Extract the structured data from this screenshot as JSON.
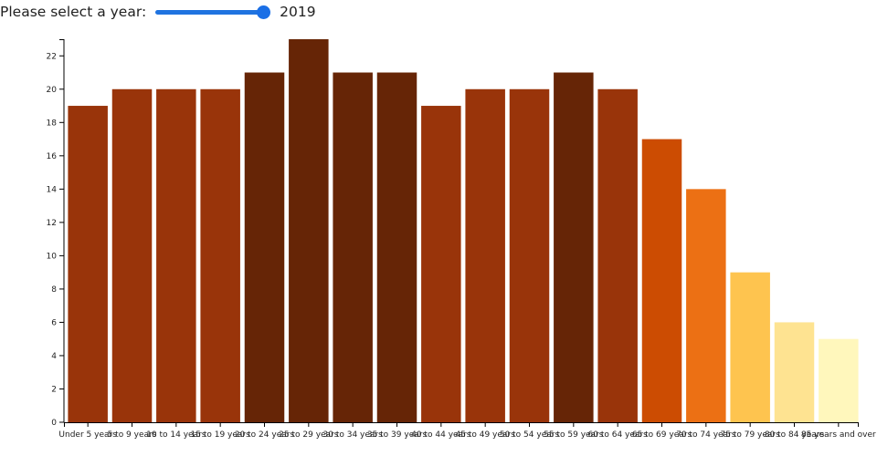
{
  "controls": {
    "label": "Please select a year:",
    "year": "2019",
    "slider_level": 1.0
  },
  "chart_data": {
    "type": "bar",
    "categories": [
      "Under 5 years",
      "5 to 9 years",
      "10 to 14 years",
      "15 to 19 years",
      "20 to 24 years",
      "25 to 29 years",
      "30 to 34 years",
      "35 to 39 years",
      "40 to 44 years",
      "45 to 49 years",
      "50 to 54 years",
      "55 to 59 years",
      "60 to 64 years",
      "65 to 69 years",
      "70 to 74 years",
      "75 to 79 years",
      "80 to 84 years",
      "85 years and over"
    ],
    "values": [
      19,
      20,
      20,
      20,
      21,
      23,
      21,
      21,
      19,
      20,
      20,
      21,
      20,
      17,
      14,
      9,
      6,
      5
    ],
    "ylim": [
      0,
      23
    ],
    "yticks": [
      0,
      2,
      4,
      6,
      8,
      10,
      12,
      14,
      16,
      18,
      20,
      22
    ],
    "grid": false,
    "colors": [
      "#99340a",
      "#99340a",
      "#99340a",
      "#99340a",
      "#662506",
      "#662506",
      "#662506",
      "#662506",
      "#99340a",
      "#99340a",
      "#99340a",
      "#662506",
      "#99340a",
      "#cc4c02",
      "#ec7014",
      "#fec44f",
      "#fee391",
      "#fff7bc"
    ]
  }
}
